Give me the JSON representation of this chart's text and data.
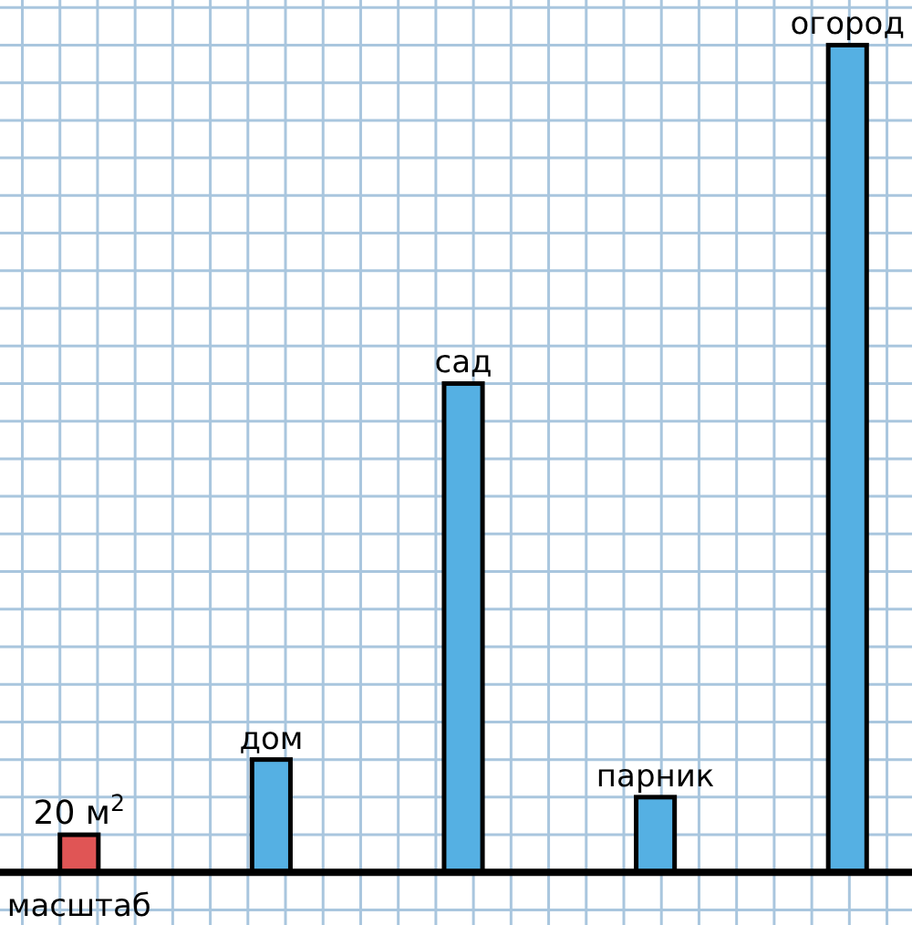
{
  "chart_data": {
    "type": "bar",
    "categories": [
      "масштаб",
      "дом",
      "сад",
      "парник",
      "огород"
    ],
    "values": [
      20,
      60,
      260,
      40,
      440
    ],
    "colors": [
      "#e05555",
      "#55b0e3",
      "#55b0e3",
      "#55b0e3",
      "#55b0e3"
    ],
    "value_labels": [
      "20 м$^{2}$",
      null,
      null,
      null,
      null
    ],
    "ylim": [
      -28,
      464
    ],
    "yticks": [
      {
        "value": 0,
        "label": null
      },
      {
        "value": 20,
        "label": null
      },
      {
        "value": 40,
        "label": null
      },
      {
        "value": 60,
        "label": null
      },
      {
        "value": 80,
        "label": null
      },
      {
        "value": 100,
        "label": null
      },
      {
        "value": 120,
        "label": null
      },
      {
        "value": 140,
        "label": null
      },
      {
        "value": 160,
        "label": null
      },
      {
        "value": 180,
        "label": null
      },
      {
        "value": 200,
        "label": null
      },
      {
        "value": 220,
        "label": null
      },
      {
        "value": 240,
        "label": null
      },
      {
        "value": 260,
        "label": null
      },
      {
        "value": 280,
        "label": null
      },
      {
        "value": 300,
        "label": null
      },
      {
        "value": 320,
        "label": null
      },
      {
        "value": 340,
        "label": null
      },
      {
        "value": 360,
        "label": null
      },
      {
        "value": 380,
        "label": null
      },
      {
        "value": 400,
        "label": null
      },
      {
        "value": 420,
        "label": null
      },
      {
        "value": 440,
        "label": null
      },
      {
        "value": 460,
        "label": null
      }
    ],
    "grid": true,
    "tick_labels": "x"
  }
}
